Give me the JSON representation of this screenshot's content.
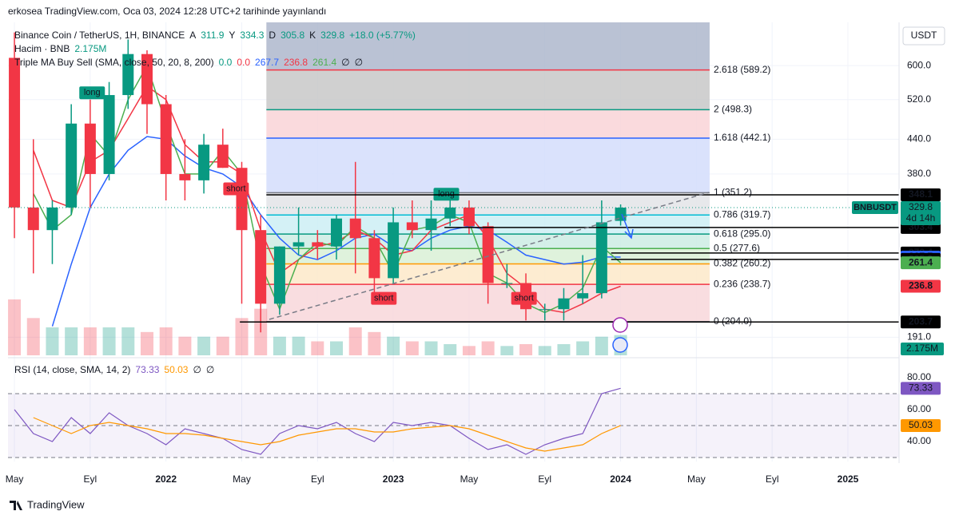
{
  "chart_data": {
    "type": "candlestick",
    "published": "erkosea TradingView.com, Oca 03, 2024 12:28 UTC+2 tarihinde yayınlandı",
    "currency": "USDT",
    "brand": "TradingView",
    "legend": [
      [
        {
          "text": "Binance Coin / TetherUS, 1H, BINANCE",
          "color": "#131722"
        },
        {
          "text": "A",
          "color": "#131722"
        },
        {
          "text": "311.9",
          "color": "#089981"
        },
        {
          "text": "Y",
          "color": "#131722"
        },
        {
          "text": "334.3",
          "color": "#089981"
        },
        {
          "text": "D",
          "color": "#131722"
        },
        {
          "text": "305.8",
          "color": "#089981"
        },
        {
          "text": "K",
          "color": "#131722"
        },
        {
          "text": "329.8",
          "color": "#089981"
        },
        {
          "text": "+18.0 (+5.77%)",
          "color": "#089981"
        }
      ],
      [
        {
          "text": "Hacim · BNB",
          "color": "#131722"
        },
        {
          "text": "2.175M",
          "color": "#089981"
        }
      ],
      [
        {
          "text": "Triple MA Buy Sell (SMA, close, 50, 20, 8, 200)",
          "color": "#131722"
        },
        {
          "text": "0.0",
          "color": "#089981"
        },
        {
          "text": "0.0",
          "color": "#f23645"
        },
        {
          "text": "267.7",
          "color": "#2962ff"
        },
        {
          "text": "236.8",
          "color": "#f23645"
        },
        {
          "text": "261.4",
          "color": "#4caf50"
        },
        {
          "text": "∅",
          "color": "#131722"
        },
        {
          "text": "∅",
          "color": "#131722"
        }
      ]
    ],
    "x": [
      0,
      1,
      2,
      3,
      4,
      5,
      6,
      7,
      8,
      9,
      10,
      11,
      12,
      13,
      14,
      15,
      16,
      17,
      18,
      19,
      20,
      21,
      22,
      23,
      24,
      25,
      26,
      27,
      28,
      29,
      30,
      31,
      32
    ],
    "xlim": [
      -0.34,
      46.7
    ],
    "xticks": [
      {
        "value": 0,
        "label": "May"
      },
      {
        "value": 4,
        "label": "Eyl"
      },
      {
        "value": 8,
        "label": "2022"
      },
      {
        "value": 12,
        "label": "May"
      },
      {
        "value": 16,
        "label": "Eyl"
      },
      {
        "value": 20,
        "label": "2023"
      },
      {
        "value": 24,
        "label": "May"
      },
      {
        "value": 28,
        "label": "Eyl"
      },
      {
        "value": 32,
        "label": "2024"
      },
      {
        "value": 36,
        "label": "May"
      },
      {
        "value": 40,
        "label": "Eyl"
      },
      {
        "value": 44,
        "label": "2025"
      }
    ],
    "ylim": [
      177,
      720
    ],
    "log_scale": true,
    "yticks": [
      {
        "value": 600,
        "label": "600.0"
      },
      {
        "value": 520,
        "label": "520.0"
      },
      {
        "value": 440,
        "label": "440.0"
      },
      {
        "value": 380,
        "label": "380.0"
      },
      {
        "value": 191,
        "label": "191.0"
      }
    ],
    "up_color": "#089981",
    "down_color": "#f23645",
    "open": [
      620,
      330,
      300,
      330,
      470,
      380,
      530,
      630,
      510,
      380,
      370,
      430,
      390,
      300,
      220,
      280,
      285,
      280,
      315,
      290,
      245,
      310,
      300,
      315,
      330,
      305,
      240,
      240,
      215,
      215,
      225,
      230,
      311.9
    ],
    "high": [
      690,
      440,
      340,
      510,
      520,
      560,
      670,
      640,
      530,
      440,
      450,
      460,
      400,
      320,
      280,
      330,
      300,
      320,
      400,
      300,
      330,
      340,
      340,
      350,
      340,
      310,
      260,
      250,
      220,
      235,
      270,
      340,
      334.3
    ],
    "low": [
      290,
      250,
      260,
      320,
      330,
      370,
      500,
      450,
      340,
      340,
      350,
      390,
      220,
      195,
      210,
      270,
      265,
      265,
      250,
      225,
      240,
      290,
      275,
      305,
      295,
      220,
      235,
      205,
      205,
      205,
      220,
      225,
      305.8
    ],
    "close": [
      330,
      300,
      330,
      470,
      380,
      530,
      630,
      510,
      380,
      370,
      430,
      390,
      300,
      220,
      280,
      285,
      280,
      315,
      290,
      245,
      310,
      300,
      315,
      330,
      305,
      240,
      240,
      215,
      215,
      225,
      230,
      310,
      329.8
    ],
    "volume": [
      6,
      4,
      3,
      3,
      3,
      3,
      3,
      2.5,
      3,
      2,
      2,
      2,
      4,
      5,
      2,
      2,
      1.5,
      1.5,
      3,
      2.5,
      2,
      1.5,
      1.5,
      1.2,
      1,
      1.5,
      1,
      1.2,
      1,
      1.2,
      1.5,
      2,
      2.175
    ],
    "volume_color": "#b2b5be",
    "ma_series": [
      {
        "name": "SMA 50",
        "color": "#2962ff",
        "values": [
          null,
          null,
          200,
          260,
          330,
          380,
          420,
          445,
          440,
          410,
          390,
          380,
          360,
          320,
          290,
          270,
          265,
          275,
          290,
          295,
          280,
          275,
          290,
          300,
          305,
          300,
          285,
          270,
          265,
          260,
          262,
          268,
          267.7
        ]
      },
      {
        "name": "SMA 20",
        "color": "#f23645",
        "values": [
          null,
          420,
          340,
          330,
          400,
          420,
          480,
          550,
          520,
          430,
          400,
          400,
          380,
          300,
          250,
          265,
          280,
          285,
          300,
          290,
          270,
          275,
          300,
          310,
          320,
          290,
          250,
          235,
          215,
          212,
          220,
          230,
          236.8
        ]
      },
      {
        "name": "SMA 8",
        "color": "#4caf50",
        "values": [
          null,
          350,
          300,
          320,
          450,
          410,
          520,
          600,
          470,
          380,
          380,
          420,
          380,
          260,
          215,
          265,
          285,
          280,
          305,
          290,
          250,
          300,
          305,
          320,
          310,
          250,
          240,
          220,
          212,
          220,
          235,
          280,
          261.4
        ]
      }
    ],
    "fib": {
      "x_range": [
        13.3,
        36.7
      ],
      "levels": [
        {
          "label": "0 (204.0)",
          "value": 204.0,
          "color": "#787b86",
          "fill": "#f8d7da"
        },
        {
          "label": "0.236 (238.7)",
          "value": 238.7,
          "color": "#f23645",
          "fill": "#fde9c9"
        },
        {
          "label": "0.382 (260.2)",
          "value": 260.2,
          "color": "#ff9800",
          "fill": "#d9f0d6"
        },
        {
          "label": "0.5 (277.6)",
          "value": 277.6,
          "color": "#4caf50",
          "fill": "#cdece4"
        },
        {
          "label": "0.618 (295.0)",
          "value": 295.0,
          "color": "#089981",
          "fill": "#cdeef4"
        },
        {
          "label": "0.786 (319.7)",
          "value": 319.7,
          "color": "#00bcd4",
          "fill": "#e3e4e8"
        },
        {
          "label": "1 (351.2)",
          "value": 351.2,
          "color": "#787b86",
          "fill": "#d3ddfc"
        },
        {
          "label": "1.618 (442.1)",
          "value": 442.1,
          "color": "#2962ff",
          "fill": "#f9d3d7"
        },
        {
          "label": "2 (498.3)",
          "value": 498.3,
          "color": "#089981",
          "fill": "#c8c8c8"
        },
        {
          "label": "2.618 (589.2)",
          "value": 589.2,
          "color": "#f23645",
          "fill": "#aeb7cc"
        }
      ]
    },
    "price_labels": [
      {
        "value": 348.1,
        "color": "#000000",
        "from": 13.3
      },
      {
        "value": 303.4,
        "color": "#000000",
        "from": 22.7
      },
      {
        "value": 272.4,
        "color": "#000000",
        "from": 31.5
      },
      {
        "value": 267.7,
        "color": "#2962ff"
      },
      {
        "value": 265.2,
        "color": "#000000",
        "from": 31.5
      },
      {
        "value": 261.4,
        "color": "#4caf50"
      },
      {
        "value": 236.8,
        "color": "#f23645"
      },
      {
        "value": 203.7,
        "color": "#000000",
        "from": 11.9
      }
    ],
    "current_price": {
      "name": "BNBUSDT",
      "value": 329.8,
      "countdown": "4d 14h",
      "color": "#089981"
    },
    "volume_label": {
      "text": "2.175M",
      "color": "#089981"
    },
    "annotations": [
      {
        "text": "long",
        "x": 4.1,
        "price": 535,
        "color": "#089981"
      },
      {
        "text": "short",
        "x": 11.7,
        "price": 357,
        "color": "#f23645"
      },
      {
        "text": "long",
        "x": 22.8,
        "price": 349,
        "color": "#089981"
      },
      {
        "text": "short",
        "x": 19.5,
        "price": 225,
        "color": "#f23645"
      },
      {
        "text": "short",
        "x": 26.9,
        "price": 225,
        "color": "#f23645"
      }
    ],
    "rsi": {
      "legend": [
        {
          "text": "RSI (14, close, SMA, 14, 2)",
          "color": "#131722"
        },
        {
          "text": "73.33",
          "color": "#7e57c2"
        },
        {
          "text": "50.03",
          "color": "#ff9800"
        },
        {
          "text": "∅",
          "color": "#131722"
        },
        {
          "text": "∅",
          "color": "#131722"
        }
      ],
      "ylim": [
        27.5,
        89
      ],
      "yticks": [
        {
          "value": 80,
          "label": "80.00"
        },
        {
          "value": 60,
          "label": "60.00"
        },
        {
          "value": 40,
          "label": "40.00"
        }
      ],
      "levels": [
        70,
        50,
        30
      ],
      "series": [
        {
          "name": "RSI",
          "color": "#7e57c2",
          "values": [
            60,
            45,
            40,
            55,
            45,
            58,
            50,
            45,
            38,
            48,
            45,
            42,
            35,
            32,
            45,
            50,
            48,
            52,
            45,
            40,
            52,
            50,
            52,
            50,
            42,
            35,
            38,
            32,
            38,
            42,
            45,
            70,
            73.33
          ],
          "label": "73.33"
        },
        {
          "name": "RSI MA",
          "color": "#ff9800",
          "values": [
            null,
            55,
            50,
            45,
            50,
            52,
            50,
            48,
            45,
            45,
            44,
            42,
            40,
            38,
            40,
            44,
            46,
            48,
            48,
            46,
            46,
            48,
            49,
            50,
            48,
            44,
            40,
            36,
            34,
            36,
            38,
            45,
            50.03
          ],
          "label": "50.03"
        }
      ]
    }
  }
}
